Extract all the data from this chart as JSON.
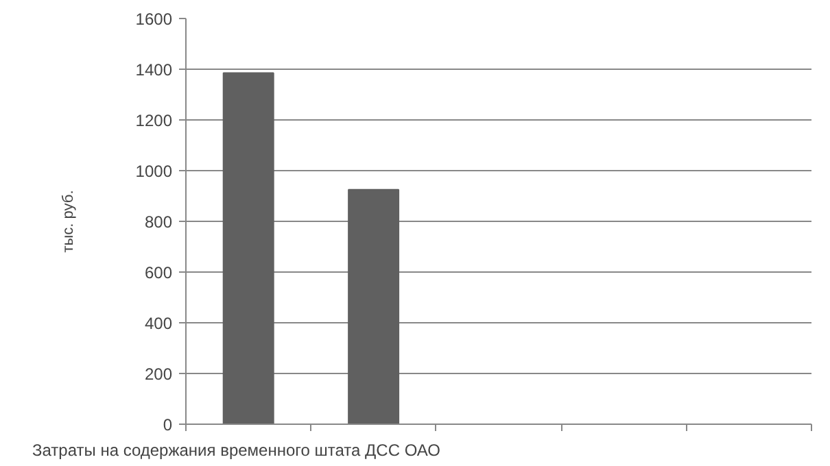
{
  "chart_data": {
    "type": "bar",
    "xlabel": "Затраты на содержания временного штата ДСС ОАО",
    "ylabel": "тыс. руб.",
    "categories": [
      null,
      null,
      null,
      null,
      null
    ],
    "values": [
      1385,
      925,
      null,
      null,
      null
    ],
    "color": "#606060",
    "ylim": [
      0,
      1600
    ],
    "yticks": [
      0,
      200,
      400,
      600,
      800,
      1000,
      1200,
      1400,
      1600
    ],
    "grid": "y"
  }
}
